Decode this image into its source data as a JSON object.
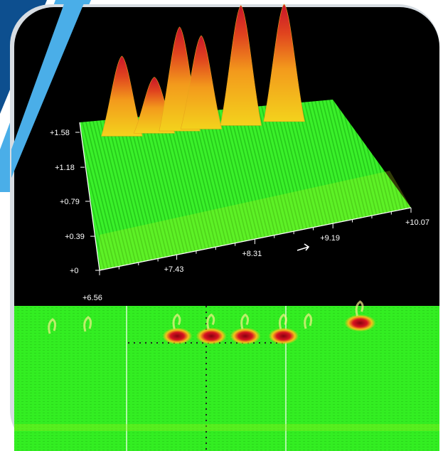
{
  "colors": {
    "panel_bg": "#000000",
    "frame": "#cfd6dd",
    "accent_dark": "#0d4f8f",
    "accent_light": "#4aaee8",
    "surface_low": "#2ee81f",
    "surface_mid": "#f2c21a",
    "surface_high": "#d4182a",
    "axis": "#ffffff"
  },
  "chart_data": [
    {
      "type": "area",
      "view": "3d-surface",
      "title": "",
      "xlabel": "",
      "ylabel": "",
      "x_ticks": [
        "+6.56",
        "+7.43",
        "+8.31",
        "+9.19",
        "+10.07"
      ],
      "x_range": [
        6.56,
        10.07
      ],
      "y_ticks": [
        "+0",
        "+0.39",
        "+0.79",
        "+1.18",
        "+1.58"
      ],
      "y_range": [
        0,
        1.58
      ],
      "grid": false,
      "peaks": [
        {
          "x": 6.85,
          "height": 1.5
        },
        {
          "x": 7.3,
          "height": 1.05
        },
        {
          "x": 7.65,
          "height": 1.95
        },
        {
          "x": 7.95,
          "height": 1.75
        },
        {
          "x": 8.5,
          "height": 2.25
        },
        {
          "x": 9.1,
          "height": 2.2
        }
      ]
    },
    {
      "type": "heatmap",
      "view": "2d-map",
      "title": "",
      "crosshair": true,
      "hotspots": [
        {
          "x": 0.35,
          "y": 0.11,
          "intensity": 0.9
        },
        {
          "x": 0.43,
          "y": 0.11,
          "intensity": 0.95
        },
        {
          "x": 0.51,
          "y": 0.11,
          "intensity": 0.95
        },
        {
          "x": 0.6,
          "y": 0.11,
          "intensity": 0.92
        },
        {
          "x": 0.78,
          "y": 0.02,
          "intensity": 1.0
        }
      ]
    }
  ]
}
